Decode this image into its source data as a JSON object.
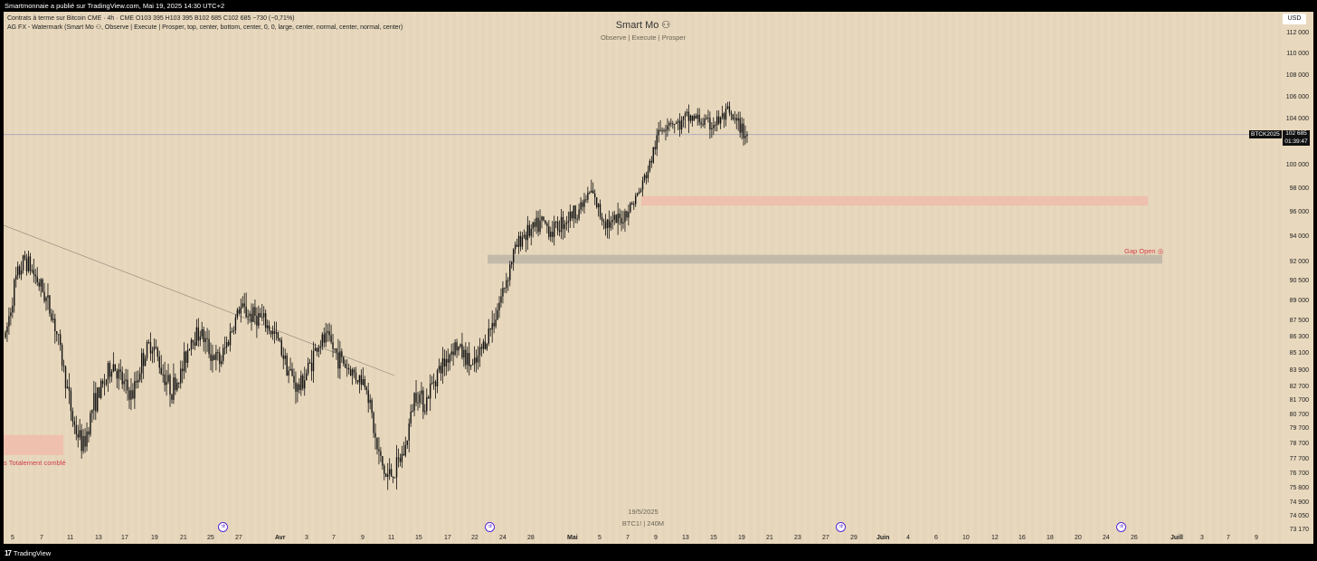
{
  "header": {
    "published_text": "Smartmonnaie a publié sur TradingView.com, Mai 19, 2025 14:30 UTC+2"
  },
  "legend": {
    "line1": "Contrats à terme sur Bitcoin CME · 4h · CME   O103 395   H103 395   B102 685   C102 685   −730 (−0,71%)",
    "line2": "AG FX - Watermark (Smart Mo ⚇, Observe |  Execute |  Prosper, top, center, bottom, center, 0, 0, large, center, normal, center, normal, center)"
  },
  "watermark": {
    "title": "Smart Mo ⚇",
    "subtitle": "Observe |  Execute |  Prosper",
    "date": "19/5/2025",
    "symbol": "BTC1! | 240M"
  },
  "currency_button": "USD",
  "price_axis": [
    "112 000",
    "110 000",
    "108 000",
    "106 000",
    "104 000",
    "100 000",
    "98 000",
    "96 000",
    "94 000",
    "92 000",
    "90 500",
    "89 000",
    "87 500",
    "86 300",
    "85 100",
    "83 900",
    "82 700",
    "81 700",
    "80 700",
    "79 700",
    "78 700",
    "77 700",
    "76 700",
    "75 800",
    "74 900",
    "74 050",
    "73 170"
  ],
  "symbol_tag": "BTCK2025",
  "price_tag": {
    "value": "102 685",
    "countdown": "01:39:47"
  },
  "time_axis": [
    "5",
    "7",
    "11",
    "13",
    "17",
    "19",
    "21",
    "25",
    "27",
    "Avr",
    "3",
    "7",
    "9",
    "11",
    "15",
    "17",
    "22",
    "24",
    "28",
    "Mai",
    "5",
    "7",
    "9",
    "13",
    "15",
    "19",
    "21",
    "23",
    "27",
    "29",
    "Juin",
    "4",
    "6",
    "10",
    "12",
    "16",
    "18",
    "20",
    "24",
    "26",
    "Juill",
    "3",
    "7",
    "9"
  ],
  "annotations": {
    "gap_open": "Gap Open",
    "gap_filled": "s Totalement comblé"
  },
  "bottom": {
    "logo_text": "TradingView"
  },
  "colors": {
    "background": "#e8d8bd",
    "candle": "#111111",
    "zone_red": "#f0b8a8",
    "zone_grey": "#b8b0a4",
    "price_line": "#9a9ac0",
    "marker": "#5a2ad8"
  },
  "chart_data": {
    "type": "candlestick",
    "interval": "4h",
    "last": {
      "open": 103395,
      "high": 103395,
      "low": 102685,
      "close": 102685,
      "change": -730,
      "change_pct": -0.71
    },
    "path_close": [
      [
        0,
        86300
      ],
      [
        1,
        90500
      ],
      [
        2,
        92300
      ],
      [
        3,
        91000
      ],
      [
        4,
        89500
      ],
      [
        5,
        87500
      ],
      [
        6,
        83900
      ],
      [
        7,
        80000
      ],
      [
        8,
        78500
      ],
      [
        9,
        81500
      ],
      [
        10,
        82800
      ],
      [
        11,
        84500
      ],
      [
        12,
        83000
      ],
      [
        13,
        82000
      ],
      [
        14,
        84700
      ],
      [
        15,
        86000
      ],
      [
        16,
        84000
      ],
      [
        17,
        82500
      ],
      [
        18,
        83700
      ],
      [
        19,
        86300
      ],
      [
        20,
        86700
      ],
      [
        21,
        85200
      ],
      [
        22,
        84500
      ],
      [
        23,
        86500
      ],
      [
        24,
        88500
      ],
      [
        25,
        88000
      ],
      [
        26,
        87800
      ],
      [
        27,
        87000
      ],
      [
        28,
        86000
      ],
      [
        29,
        84000
      ],
      [
        30,
        82500
      ],
      [
        31,
        84000
      ],
      [
        32,
        85800
      ],
      [
        33,
        86200
      ],
      [
        34,
        85000
      ],
      [
        35,
        84200
      ],
      [
        36,
        83500
      ],
      [
        37,
        83000
      ],
      [
        38,
        78500
      ],
      [
        39,
        76500
      ],
      [
        40,
        77000
      ],
      [
        41,
        78500
      ],
      [
        42,
        82500
      ],
      [
        43,
        81500
      ],
      [
        44,
        83500
      ],
      [
        45,
        84500
      ],
      [
        46,
        85800
      ],
      [
        47,
        85000
      ],
      [
        48,
        84000
      ],
      [
        49,
        85800
      ],
      [
        50,
        87500
      ],
      [
        51,
        89800
      ],
      [
        52,
        92600
      ],
      [
        53,
        94200
      ],
      [
        54,
        94500
      ],
      [
        55,
        95200
      ],
      [
        56,
        94500
      ],
      [
        57,
        95200
      ],
      [
        58,
        95800
      ],
      [
        59,
        96500
      ],
      [
        60,
        97800
      ],
      [
        61,
        95800
      ],
      [
        62,
        95000
      ],
      [
        63,
        95400
      ],
      [
        64,
        96500
      ],
      [
        65,
        97800
      ],
      [
        66,
        100000
      ],
      [
        67,
        103000
      ],
      [
        68,
        104000
      ],
      [
        69,
        103500
      ],
      [
        70,
        104200
      ],
      [
        71,
        104000
      ],
      [
        72,
        103500
      ],
      [
        73,
        103800
      ],
      [
        74,
        104500
      ],
      [
        75,
        103500
      ],
      [
        76,
        102685
      ]
    ],
    "zones": [
      {
        "label": "Gap Open",
        "low": 91900,
        "high": 92600
      },
      {
        "low": 96600,
        "high": 97400
      },
      {
        "label": "s Totalement comblé",
        "low": 78000,
        "high": 79300
      }
    ]
  }
}
